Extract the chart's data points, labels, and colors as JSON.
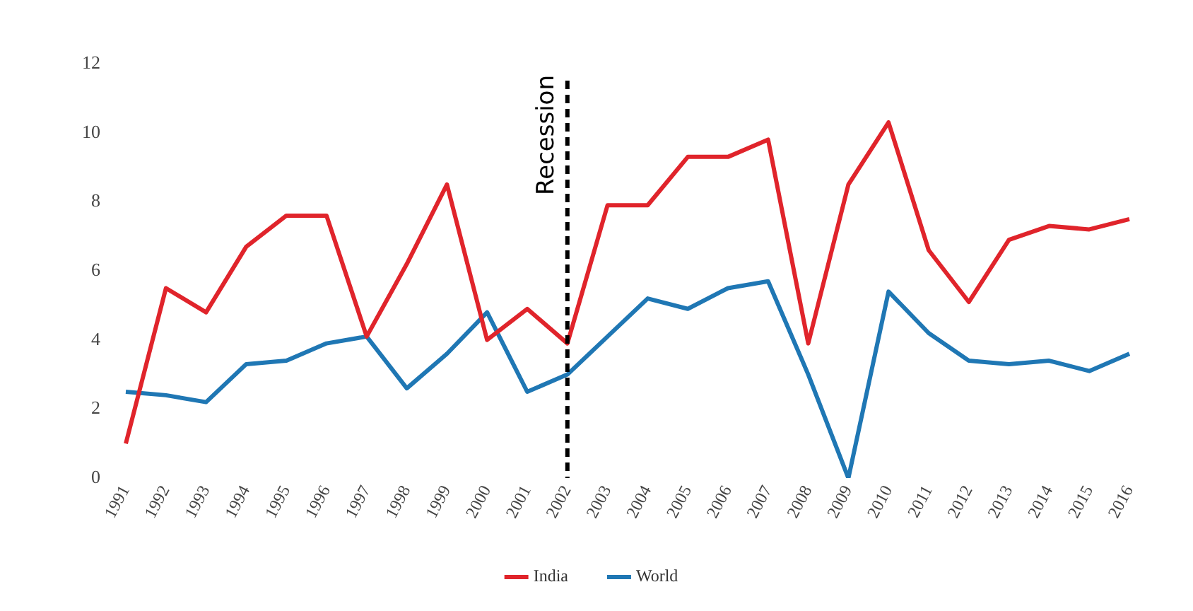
{
  "chart_data": {
    "type": "line",
    "categories": [
      "1991",
      "1992",
      "1993",
      "1994",
      "1995",
      "1996",
      "1997",
      "1998",
      "1999",
      "2000",
      "2001",
      "2002",
      "2003",
      "2004",
      "2005",
      "2006",
      "2007",
      "2008",
      "2009",
      "2010",
      "2011",
      "2012",
      "2013",
      "2014",
      "2015",
      "2016"
    ],
    "series": [
      {
        "name": "India",
        "color": "#e0242b",
        "values": [
          1.0,
          5.5,
          4.8,
          6.7,
          7.6,
          7.6,
          4.1,
          6.2,
          8.5,
          4.0,
          4.9,
          3.9,
          7.9,
          7.9,
          9.3,
          9.3,
          9.8,
          3.9,
          8.5,
          10.3,
          6.6,
          5.1,
          6.9,
          7.3,
          7.2,
          7.5
        ]
      },
      {
        "name": "World",
        "color": "#1f77b4",
        "values": [
          2.5,
          2.4,
          2.2,
          3.3,
          3.4,
          3.9,
          4.1,
          2.6,
          3.6,
          4.8,
          2.5,
          3.0,
          4.1,
          5.2,
          4.9,
          5.5,
          5.7,
          3.0,
          0.0,
          5.4,
          4.2,
          3.4,
          3.3,
          3.4,
          3.1,
          3.6
        ]
      }
    ],
    "ylim": [
      0,
      12
    ],
    "yticks": [
      0,
      2,
      4,
      6,
      8,
      10,
      12
    ],
    "grid": false,
    "legend": "bottom",
    "marker": "none",
    "line_style": "solid",
    "ref_lines": [
      {
        "axis": "x",
        "value": "2002",
        "label": "Recession",
        "color": "#000000",
        "line_style": "dashed"
      }
    ]
  }
}
